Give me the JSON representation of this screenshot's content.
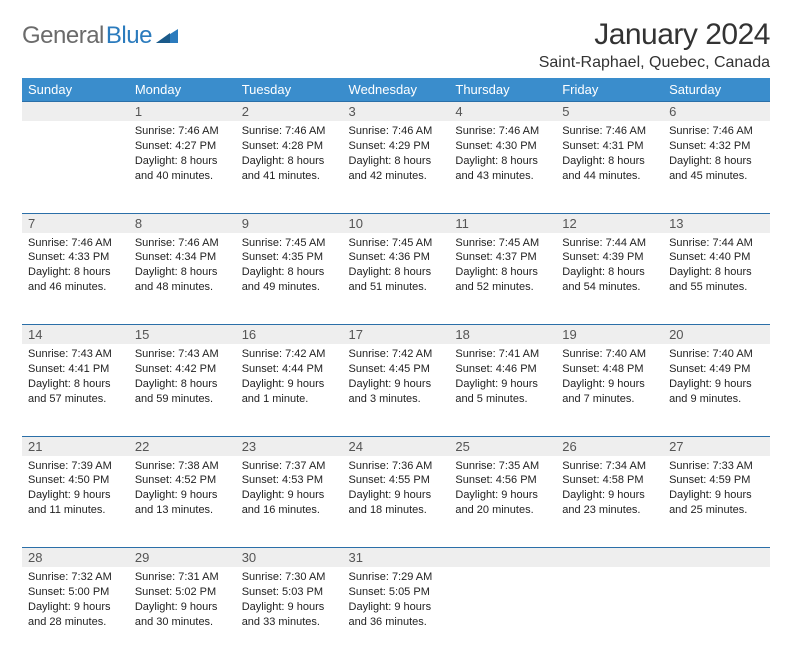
{
  "logo": {
    "text1": "General",
    "text2": "Blue"
  },
  "title": "January 2024",
  "location": "Saint-Raphael, Quebec, Canada",
  "colors": {
    "header_bg": "#3a8dcc",
    "header_text": "#ffffff",
    "daynum_bg": "#eeeeee",
    "daynum_text": "#555555",
    "border": "#2b6fa8",
    "body_text": "#222222",
    "logo_gray": "#6b6b6b",
    "logo_blue": "#2b7bbd"
  },
  "day_headers": [
    "Sunday",
    "Monday",
    "Tuesday",
    "Wednesday",
    "Thursday",
    "Friday",
    "Saturday"
  ],
  "weeks": [
    {
      "nums": [
        "",
        "1",
        "2",
        "3",
        "4",
        "5",
        "6"
      ],
      "cells": [
        null,
        {
          "sunrise": "Sunrise: 7:46 AM",
          "sunset": "Sunset: 4:27 PM",
          "day1": "Daylight: 8 hours",
          "day2": "and 40 minutes."
        },
        {
          "sunrise": "Sunrise: 7:46 AM",
          "sunset": "Sunset: 4:28 PM",
          "day1": "Daylight: 8 hours",
          "day2": "and 41 minutes."
        },
        {
          "sunrise": "Sunrise: 7:46 AM",
          "sunset": "Sunset: 4:29 PM",
          "day1": "Daylight: 8 hours",
          "day2": "and 42 minutes."
        },
        {
          "sunrise": "Sunrise: 7:46 AM",
          "sunset": "Sunset: 4:30 PM",
          "day1": "Daylight: 8 hours",
          "day2": "and 43 minutes."
        },
        {
          "sunrise": "Sunrise: 7:46 AM",
          "sunset": "Sunset: 4:31 PM",
          "day1": "Daylight: 8 hours",
          "day2": "and 44 minutes."
        },
        {
          "sunrise": "Sunrise: 7:46 AM",
          "sunset": "Sunset: 4:32 PM",
          "day1": "Daylight: 8 hours",
          "day2": "and 45 minutes."
        }
      ]
    },
    {
      "nums": [
        "7",
        "8",
        "9",
        "10",
        "11",
        "12",
        "13"
      ],
      "cells": [
        {
          "sunrise": "Sunrise: 7:46 AM",
          "sunset": "Sunset: 4:33 PM",
          "day1": "Daylight: 8 hours",
          "day2": "and 46 minutes."
        },
        {
          "sunrise": "Sunrise: 7:46 AM",
          "sunset": "Sunset: 4:34 PM",
          "day1": "Daylight: 8 hours",
          "day2": "and 48 minutes."
        },
        {
          "sunrise": "Sunrise: 7:45 AM",
          "sunset": "Sunset: 4:35 PM",
          "day1": "Daylight: 8 hours",
          "day2": "and 49 minutes."
        },
        {
          "sunrise": "Sunrise: 7:45 AM",
          "sunset": "Sunset: 4:36 PM",
          "day1": "Daylight: 8 hours",
          "day2": "and 51 minutes."
        },
        {
          "sunrise": "Sunrise: 7:45 AM",
          "sunset": "Sunset: 4:37 PM",
          "day1": "Daylight: 8 hours",
          "day2": "and 52 minutes."
        },
        {
          "sunrise": "Sunrise: 7:44 AM",
          "sunset": "Sunset: 4:39 PM",
          "day1": "Daylight: 8 hours",
          "day2": "and 54 minutes."
        },
        {
          "sunrise": "Sunrise: 7:44 AM",
          "sunset": "Sunset: 4:40 PM",
          "day1": "Daylight: 8 hours",
          "day2": "and 55 minutes."
        }
      ]
    },
    {
      "nums": [
        "14",
        "15",
        "16",
        "17",
        "18",
        "19",
        "20"
      ],
      "cells": [
        {
          "sunrise": "Sunrise: 7:43 AM",
          "sunset": "Sunset: 4:41 PM",
          "day1": "Daylight: 8 hours",
          "day2": "and 57 minutes."
        },
        {
          "sunrise": "Sunrise: 7:43 AM",
          "sunset": "Sunset: 4:42 PM",
          "day1": "Daylight: 8 hours",
          "day2": "and 59 minutes."
        },
        {
          "sunrise": "Sunrise: 7:42 AM",
          "sunset": "Sunset: 4:44 PM",
          "day1": "Daylight: 9 hours",
          "day2": "and 1 minute."
        },
        {
          "sunrise": "Sunrise: 7:42 AM",
          "sunset": "Sunset: 4:45 PM",
          "day1": "Daylight: 9 hours",
          "day2": "and 3 minutes."
        },
        {
          "sunrise": "Sunrise: 7:41 AM",
          "sunset": "Sunset: 4:46 PM",
          "day1": "Daylight: 9 hours",
          "day2": "and 5 minutes."
        },
        {
          "sunrise": "Sunrise: 7:40 AM",
          "sunset": "Sunset: 4:48 PM",
          "day1": "Daylight: 9 hours",
          "day2": "and 7 minutes."
        },
        {
          "sunrise": "Sunrise: 7:40 AM",
          "sunset": "Sunset: 4:49 PM",
          "day1": "Daylight: 9 hours",
          "day2": "and 9 minutes."
        }
      ]
    },
    {
      "nums": [
        "21",
        "22",
        "23",
        "24",
        "25",
        "26",
        "27"
      ],
      "cells": [
        {
          "sunrise": "Sunrise: 7:39 AM",
          "sunset": "Sunset: 4:50 PM",
          "day1": "Daylight: 9 hours",
          "day2": "and 11 minutes."
        },
        {
          "sunrise": "Sunrise: 7:38 AM",
          "sunset": "Sunset: 4:52 PM",
          "day1": "Daylight: 9 hours",
          "day2": "and 13 minutes."
        },
        {
          "sunrise": "Sunrise: 7:37 AM",
          "sunset": "Sunset: 4:53 PM",
          "day1": "Daylight: 9 hours",
          "day2": "and 16 minutes."
        },
        {
          "sunrise": "Sunrise: 7:36 AM",
          "sunset": "Sunset: 4:55 PM",
          "day1": "Daylight: 9 hours",
          "day2": "and 18 minutes."
        },
        {
          "sunrise": "Sunrise: 7:35 AM",
          "sunset": "Sunset: 4:56 PM",
          "day1": "Daylight: 9 hours",
          "day2": "and 20 minutes."
        },
        {
          "sunrise": "Sunrise: 7:34 AM",
          "sunset": "Sunset: 4:58 PM",
          "day1": "Daylight: 9 hours",
          "day2": "and 23 minutes."
        },
        {
          "sunrise": "Sunrise: 7:33 AM",
          "sunset": "Sunset: 4:59 PM",
          "day1": "Daylight: 9 hours",
          "day2": "and 25 minutes."
        }
      ]
    },
    {
      "nums": [
        "28",
        "29",
        "30",
        "31",
        "",
        "",
        ""
      ],
      "cells": [
        {
          "sunrise": "Sunrise: 7:32 AM",
          "sunset": "Sunset: 5:00 PM",
          "day1": "Daylight: 9 hours",
          "day2": "and 28 minutes."
        },
        {
          "sunrise": "Sunrise: 7:31 AM",
          "sunset": "Sunset: 5:02 PM",
          "day1": "Daylight: 9 hours",
          "day2": "and 30 minutes."
        },
        {
          "sunrise": "Sunrise: 7:30 AM",
          "sunset": "Sunset: 5:03 PM",
          "day1": "Daylight: 9 hours",
          "day2": "and 33 minutes."
        },
        {
          "sunrise": "Sunrise: 7:29 AM",
          "sunset": "Sunset: 5:05 PM",
          "day1": "Daylight: 9 hours",
          "day2": "and 36 minutes."
        },
        null,
        null,
        null
      ]
    }
  ]
}
